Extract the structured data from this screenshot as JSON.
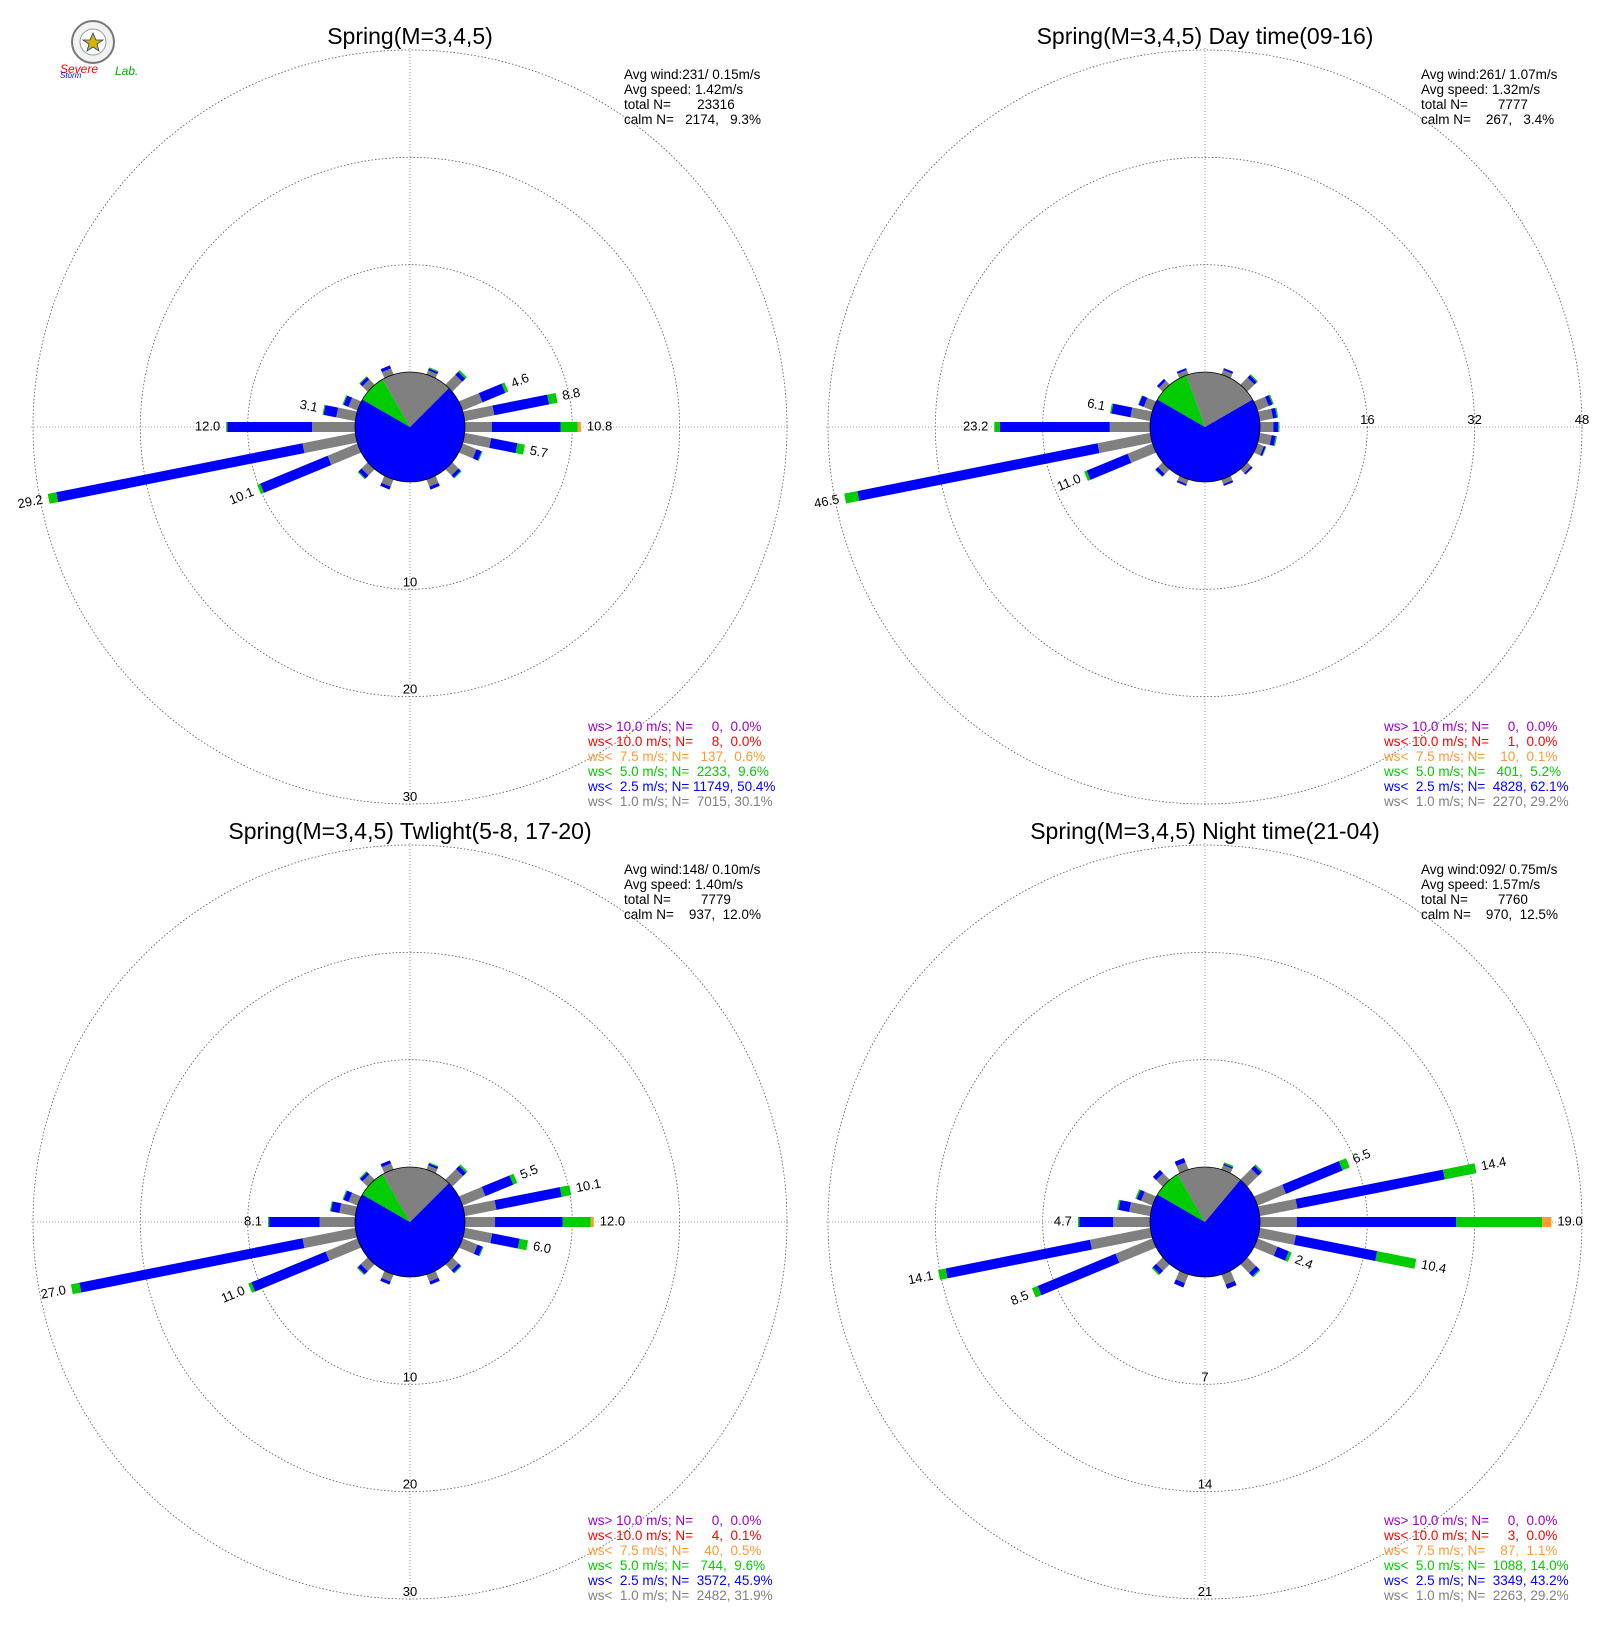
{
  "colors": {
    "gt10": "#9900cc",
    "lt10": "#ff0000",
    "lt7_5": "#ff9933",
    "lt5": "#00cc00",
    "lt2_5": "#0000ff",
    "lt1": "#808080",
    "grid": "#555555",
    "text": "#000000"
  },
  "logo": {
    "line1": "Severe",
    "line2": "Storm",
    "line3": "Lab."
  },
  "legend_labels": [
    "ws> 10.0 m/s; N=",
    "ws< 10.0 m/s; N=",
    "ws<  7.5 m/s; N=",
    "ws<  5.0 m/s; N=",
    "ws<  2.5 m/s; N=",
    "ws<  1.0 m/s; N="
  ],
  "chart_data": [
    {
      "type": "wind-rose",
      "title": "Spring(M=3,4,5)",
      "stats": [
        "Avg wind:231/ 0.15m/s",
        "Avg speed: 1.42m/s",
        "total N=       23316",
        "calm N=   2174,   9.3%"
      ],
      "rings": [
        10,
        20,
        30
      ],
      "ring_label_side": "bottom",
      "ring_labels": [
        "10",
        "20",
        "30"
      ],
      "legend_values": [
        "    0,  0.0%",
        "    8,  0.0%",
        "  137,  0.6%",
        " 2233,  9.6%",
        "11749, 50.4%",
        " 7015, 30.1%"
      ],
      "pie": [
        {
          "bin": "lt1",
          "from": 330,
          "to": 45
        },
        {
          "bin": "lt2_5",
          "from": 45,
          "to": 300
        },
        {
          "bin": "lt5",
          "from": 300,
          "to": 330
        }
      ],
      "bars": [
        {
          "dir": 22.5,
          "total": 0.7,
          "segs": [
            0.4,
            0.2,
            0.1
          ]
        },
        {
          "dir": 45,
          "total": 1.9,
          "segs": [
            1.3,
            0.4,
            0.2
          ]
        },
        {
          "dir": 67.5,
          "total": 4.6,
          "segs": [
            2.0,
            2.3,
            0.3
          ],
          "label": "4.6"
        },
        {
          "dir": 78.75,
          "total": 8.8,
          "segs": [
            2.8,
            5.2,
            0.8
          ],
          "label": "8.8"
        },
        {
          "dir": 90,
          "total": 10.8,
          "segs": [
            2.5,
            6.4,
            1.6,
            0.3
          ],
          "label": "10.8"
        },
        {
          "dir": 101.25,
          "total": 5.7,
          "segs": [
            2.5,
            2.5,
            0.7
          ],
          "label": "5.7"
        },
        {
          "dir": 112.5,
          "total": 2.0,
          "segs": [
            1.4,
            0.5,
            0.1
          ]
        },
        {
          "dir": 135,
          "total": 1.2,
          "segs": [
            0.8,
            0.3,
            0.1
          ]
        },
        {
          "dir": 157.5,
          "total": 1.0,
          "segs": [
            0.7,
            0.3
          ]
        },
        {
          "dir": 202.5,
          "total": 1.0,
          "segs": [
            0.7,
            0.3
          ]
        },
        {
          "dir": 225,
          "total": 1.3,
          "segs": [
            0.8,
            0.4,
            0.1
          ]
        },
        {
          "dir": 247.5,
          "total": 10.1,
          "segs": [
            3.0,
            6.8,
            0.3
          ],
          "label": "10.1"
        },
        {
          "dir": 258.75,
          "total": 29.2,
          "segs": [
            5.0,
            23.4,
            0.8
          ],
          "label": "29.2"
        },
        {
          "dir": 270,
          "total": 12.0,
          "segs": [
            4.0,
            7.9,
            0.1
          ],
          "label": "12.0"
        },
        {
          "dir": 281.25,
          "total": 3.1,
          "segs": [
            1.8,
            1.2,
            0.1
          ],
          "label": "3.1"
        },
        {
          "dir": 292.5,
          "total": 1.5,
          "segs": [
            0.9,
            0.5,
            0.1
          ]
        },
        {
          "dir": 315,
          "total": 1.1,
          "segs": [
            0.7,
            0.3,
            0.1
          ]
        },
        {
          "dir": 337.5,
          "total": 0.9,
          "segs": [
            0.6,
            0.3
          ]
        }
      ]
    },
    {
      "type": "wind-rose",
      "title": "Spring(M=3,4,5) Day time(09-16)",
      "stats": [
        "Avg wind:261/ 1.07m/s",
        "Avg speed: 1.32m/s",
        "total N=        7777",
        "calm N=    267,   3.4%"
      ],
      "rings": [
        16,
        32,
        48
      ],
      "ring_label_side": "right",
      "ring_labels": [
        "16",
        "32",
        "48"
      ],
      "legend_values": [
        "    0,  0.0%",
        "    1,  0.0%",
        "   10,  0.1%",
        "  401,  5.2%",
        " 4828, 62.1%",
        " 2270, 29.2%"
      ],
      "pie": [
        {
          "bin": "lt1",
          "from": 340,
          "to": 60
        },
        {
          "bin": "lt2_5",
          "from": 60,
          "to": 300
        },
        {
          "bin": "lt5",
          "from": 300,
          "to": 340
        }
      ],
      "bars": [
        {
          "dir": 22.5,
          "total": 1.0,
          "segs": [
            0.7,
            0.3
          ]
        },
        {
          "dir": 45,
          "total": 2.2,
          "segs": [
            1.5,
            0.5,
            0.2
          ]
        },
        {
          "dir": 67.5,
          "total": 2.6,
          "segs": [
            1.8,
            0.6,
            0.2
          ]
        },
        {
          "dir": 78.75,
          "total": 2.8,
          "segs": [
            2.0,
            0.6,
            0.2
          ]
        },
        {
          "dir": 90,
          "total": 2.9,
          "segs": [
            2.0,
            0.7,
            0.2
          ]
        },
        {
          "dir": 101.25,
          "total": 2.6,
          "segs": [
            1.8,
            0.6,
            0.2
          ]
        },
        {
          "dir": 112.5,
          "total": 1.4,
          "segs": [
            1.0,
            0.3,
            0.1
          ]
        },
        {
          "dir": 135,
          "total": 1.1,
          "segs": [
            0.8,
            0.3
          ]
        },
        {
          "dir": 157.5,
          "total": 1.0,
          "segs": [
            0.7,
            0.3
          ]
        },
        {
          "dir": 202.5,
          "total": 1.0,
          "segs": [
            0.7,
            0.3
          ]
        },
        {
          "dir": 225,
          "total": 1.6,
          "segs": [
            1.0,
            0.5,
            0.1
          ]
        },
        {
          "dir": 247.5,
          "total": 11.0,
          "segs": [
            4.0,
            6.6,
            0.4
          ],
          "label": "11.0"
        },
        {
          "dir": 258.75,
          "total": 46.5,
          "segs": [
            8.0,
            36.5,
            2.0
          ],
          "label": "46.5"
        },
        {
          "dir": 270,
          "total": 23.2,
          "segs": [
            6.0,
            16.4,
            0.8
          ],
          "label": "23.2"
        },
        {
          "dir": 281.25,
          "total": 6.1,
          "segs": [
            3.0,
            2.9,
            0.2
          ],
          "label": "6.1"
        },
        {
          "dir": 292.5,
          "total": 2.3,
          "segs": [
            1.4,
            0.8,
            0.1
          ]
        },
        {
          "dir": 315,
          "total": 1.2,
          "segs": [
            0.8,
            0.4
          ]
        },
        {
          "dir": 337.5,
          "total": 1.0,
          "segs": [
            0.7,
            0.3
          ]
        }
      ]
    },
    {
      "type": "wind-rose",
      "title": "Spring(M=3,4,5) Twlight(5-8, 17-20)",
      "stats": [
        "Avg wind:148/ 0.10m/s",
        "Avg speed: 1.40m/s",
        "total N=        7779",
        "calm N=    937,  12.0%"
      ],
      "rings": [
        10,
        20,
        30
      ],
      "ring_label_side": "bottom",
      "ring_labels": [
        "10",
        "20",
        "30"
      ],
      "legend_values": [
        "    0,  0.0%",
        "    4,  0.1%",
        "   40,  0.5%",
        "  744,  9.6%",
        " 3572, 45.9%",
        " 2482, 31.9%"
      ],
      "pie": [
        {
          "bin": "lt1",
          "from": 330,
          "to": 45
        },
        {
          "bin": "lt2_5",
          "from": 45,
          "to": 300
        },
        {
          "bin": "lt5",
          "from": 300,
          "to": 330
        }
      ],
      "bars": [
        {
          "dir": 22.5,
          "total": 0.7,
          "segs": [
            0.4,
            0.2,
            0.1
          ]
        },
        {
          "dir": 45,
          "total": 2.0,
          "segs": [
            1.4,
            0.4,
            0.2
          ]
        },
        {
          "dir": 67.5,
          "total": 5.5,
          "segs": [
            2.3,
            2.8,
            0.4
          ],
          "label": "5.5"
        },
        {
          "dir": 78.75,
          "total": 10.1,
          "segs": [
            3.0,
            6.2,
            0.9
          ],
          "label": "10.1"
        },
        {
          "dir": 90,
          "total": 12.0,
          "segs": [
            2.8,
            6.3,
            2.6,
            0.3
          ],
          "label": "12.0"
        },
        {
          "dir": 101.25,
          "total": 6.0,
          "segs": [
            2.6,
            2.6,
            0.8
          ],
          "label": "6.0"
        },
        {
          "dir": 112.5,
          "total": 2.1,
          "segs": [
            1.5,
            0.5,
            0.1
          ]
        },
        {
          "dir": 135,
          "total": 1.2,
          "segs": [
            0.8,
            0.3,
            0.1
          ]
        },
        {
          "dir": 157.5,
          "total": 1.0,
          "segs": [
            0.7,
            0.3
          ]
        },
        {
          "dir": 202.5,
          "total": 1.0,
          "segs": [
            0.7,
            0.3
          ]
        },
        {
          "dir": 225,
          "total": 1.4,
          "segs": [
            0.9,
            0.4,
            0.1
          ]
        },
        {
          "dir": 247.5,
          "total": 11.0,
          "segs": [
            3.2,
            7.5,
            0.3
          ],
          "label": "11.0"
        },
        {
          "dir": 258.75,
          "total": 27.0,
          "segs": [
            5.0,
            21.2,
            0.8
          ],
          "label": "27.0"
        },
        {
          "dir": 270,
          "total": 8.1,
          "segs": [
            3.3,
            4.7,
            0.1
          ],
          "label": "8.1"
        },
        {
          "dir": 281.25,
          "total": 2.4,
          "segs": [
            1.5,
            0.8,
            0.1
          ]
        },
        {
          "dir": 292.5,
          "total": 1.5,
          "segs": [
            0.9,
            0.5,
            0.1
          ]
        },
        {
          "dir": 315,
          "total": 1.1,
          "segs": [
            0.7,
            0.3,
            0.1
          ]
        },
        {
          "dir": 337.5,
          "total": 0.9,
          "segs": [
            0.6,
            0.3
          ]
        }
      ]
    },
    {
      "type": "wind-rose",
      "title": "Spring(M=3,4,5) Night time(21-04)",
      "stats": [
        "Avg wind:092/ 0.75m/s",
        "Avg speed: 1.57m/s",
        "total N=        7760",
        "calm N=    970,  12.5%"
      ],
      "rings": [
        7,
        14,
        21
      ],
      "ring_label_side": "bottom",
      "ring_labels": [
        "7",
        "14",
        "21"
      ],
      "legend_values": [
        "    0,  0.0%",
        "    3,  0.0%",
        "   87,  1.1%",
        " 1088, 14.0%",
        " 3349, 43.2%",
        " 2263, 29.2%"
      ],
      "pie": [
        {
          "bin": "lt1",
          "from": 330,
          "to": 40
        },
        {
          "bin": "lt2_5",
          "from": 40,
          "to": 300
        },
        {
          "bin": "lt5",
          "from": 300,
          "to": 330
        }
      ],
      "bars": [
        {
          "dir": 22.5,
          "total": 0.5,
          "segs": [
            0.3,
            0.1,
            0.1
          ]
        },
        {
          "dir": 45,
          "total": 1.4,
          "segs": [
            1.0,
            0.3,
            0.1
          ]
        },
        {
          "dir": 67.5,
          "total": 6.5,
          "segs": [
            2.0,
            4.0,
            0.5
          ],
          "label": "6.5"
        },
        {
          "dir": 78.75,
          "total": 14.4,
          "segs": [
            2.5,
            9.8,
            2.1
          ],
          "label": "14.4"
        },
        {
          "dir": 90,
          "total": 19.0,
          "segs": [
            2.4,
            10.4,
            5.6,
            0.6
          ],
          "label": "19.0"
        },
        {
          "dir": 101.25,
          "total": 10.4,
          "segs": [
            2.4,
            5.4,
            2.6
          ],
          "label": "10.4"
        },
        {
          "dir": 112.5,
          "total": 2.4,
          "segs": [
            1.4,
            0.8,
            0.2
          ],
          "label": "2.4"
        },
        {
          "dir": 135,
          "total": 1.2,
          "segs": [
            0.8,
            0.3,
            0.1
          ]
        },
        {
          "dir": 157.5,
          "total": 1.0,
          "segs": [
            0.7,
            0.3
          ]
        },
        {
          "dir": 202.5,
          "total": 0.9,
          "segs": [
            0.6,
            0.3
          ]
        },
        {
          "dir": 225,
          "total": 1.0,
          "segs": [
            0.6,
            0.3,
            0.1
          ]
        },
        {
          "dir": 247.5,
          "total": 8.5,
          "segs": [
            2.6,
            5.5,
            0.4
          ],
          "label": "8.5"
        },
        {
          "dir": 258.75,
          "total": 14.1,
          "segs": [
            4.0,
            9.6,
            0.5
          ],
          "label": "14.1"
        },
        {
          "dir": 270,
          "total": 4.7,
          "segs": [
            2.4,
            2.2,
            0.1
          ],
          "label": "4.7"
        },
        {
          "dir": 281.25,
          "total": 2.2,
          "segs": [
            1.4,
            0.7,
            0.1
          ]
        },
        {
          "dir": 292.5,
          "total": 1.2,
          "segs": [
            0.8,
            0.3,
            0.1
          ]
        },
        {
          "dir": 315,
          "total": 0.9,
          "segs": [
            0.6,
            0.3
          ]
        },
        {
          "dir": 337.5,
          "total": 0.8,
          "segs": [
            0.5,
            0.3
          ]
        }
      ]
    }
  ]
}
